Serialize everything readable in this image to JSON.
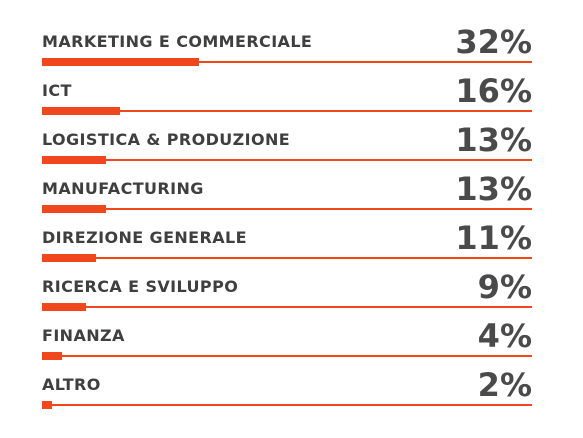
{
  "colors": {
    "accent": "#f1471d",
    "text": "#3f3f3f",
    "value_text": "#4a4a4a",
    "background": "#ffffff"
  },
  "chart_data": {
    "type": "bar",
    "orientation": "horizontal",
    "title": "",
    "xlabel": "",
    "ylabel": "",
    "xlim": [
      0,
      100
    ],
    "grid": false,
    "legend": "none",
    "categories": [
      "MARKETING E COMMERCIALE",
      "ICT",
      "LOGISTICA & PRODUZIONE",
      "MANUFACTURING",
      "DIREZIONE GENERALE",
      "RICERCA E SVILUPPO",
      "FINANZA",
      "ALTRO"
    ],
    "values": [
      32,
      16,
      13,
      13,
      11,
      9,
      4,
      2
    ],
    "value_labels": [
      "32%",
      "16%",
      "13%",
      "13%",
      "11%",
      "9%",
      "4%",
      "2%"
    ]
  }
}
